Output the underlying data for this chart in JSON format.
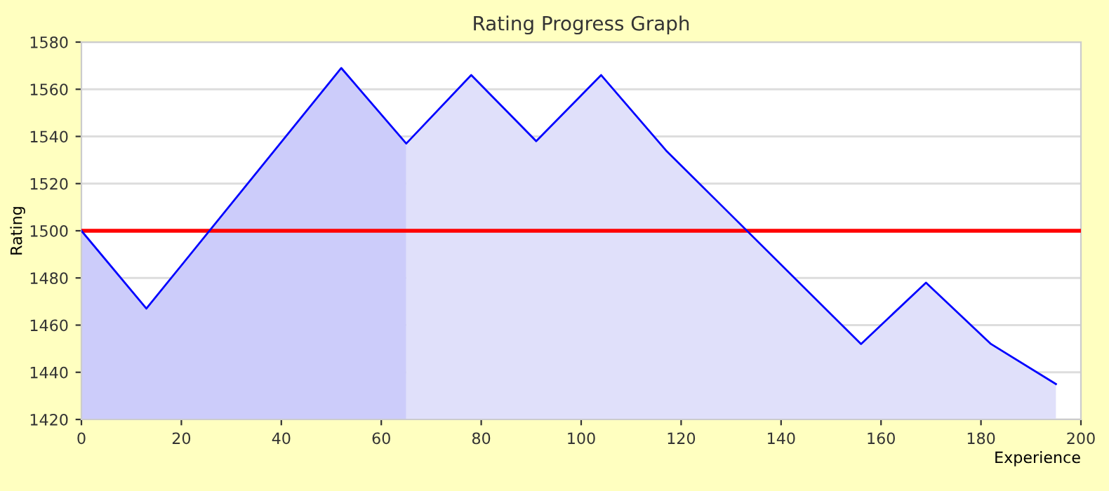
{
  "chart_data": {
    "type": "area",
    "title": "Rating Progress Graph",
    "xlabel": "Experience",
    "ylabel": "Rating",
    "series": [
      {
        "color": "#ccccfa",
        "x": [
          0,
          13,
          52,
          65
        ],
        "values": [
          1500,
          1467,
          1569,
          1537
        ]
      },
      {
        "color": "#e0e0fa",
        "x": [
          65,
          78,
          91,
          104,
          117,
          156,
          169,
          182,
          195
        ],
        "values": [
          1537,
          1566,
          1538,
          1566,
          1534,
          1452,
          1478,
          1452,
          1435
        ]
      },
      {
        "type": "line",
        "color": "#0000ff",
        "x": [
          0,
          13,
          52,
          65,
          78,
          91,
          104,
          117,
          156,
          169,
          182,
          195
        ],
        "values": [
          1500,
          1467,
          1569,
          1537,
          1566,
          1538,
          1566,
          1534,
          1452,
          1478,
          1452,
          1435
        ]
      }
    ],
    "xlim": [
      0,
      200
    ],
    "xticks": [
      0,
      20,
      40,
      60,
      80,
      100,
      120,
      140,
      160,
      180,
      200
    ],
    "ylim": [
      1420,
      1580
    ],
    "yticks": [
      1420,
      1440,
      1460,
      1480,
      1500,
      1520,
      1540,
      1560,
      1580
    ],
    "ref_lines": [
      {
        "axis": "y",
        "value": 1500,
        "color": "#ff0000"
      }
    ],
    "grid": "y",
    "legend": false
  }
}
